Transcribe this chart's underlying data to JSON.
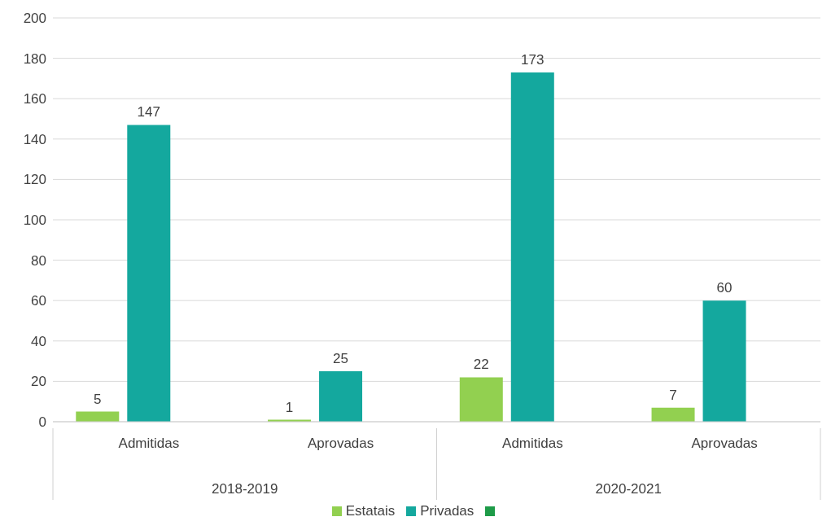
{
  "chart_data": {
    "type": "bar",
    "categories": [
      "Admitidas",
      "Aprovadas",
      "Admitidas",
      "Aprovadas"
    ],
    "series": [
      {
        "name": "Estatais",
        "color": "#92d050",
        "values": [
          5,
          1,
          22,
          7
        ]
      },
      {
        "name": "Privadas",
        "color": "#14a89e",
        "values": [
          147,
          25,
          173,
          60
        ]
      },
      {
        "color": "#1e9b48",
        "values": [
          null,
          null,
          null,
          null
        ]
      }
    ],
    "annotations": [
      "2018-2019",
      "2020-2021"
    ],
    "ylim": [
      0,
      200
    ],
    "yticks": [
      0,
      20,
      40,
      60,
      80,
      100,
      120,
      140,
      160,
      180,
      200
    ],
    "grid": "y",
    "legend": "bottom",
    "data_labels": true
  }
}
